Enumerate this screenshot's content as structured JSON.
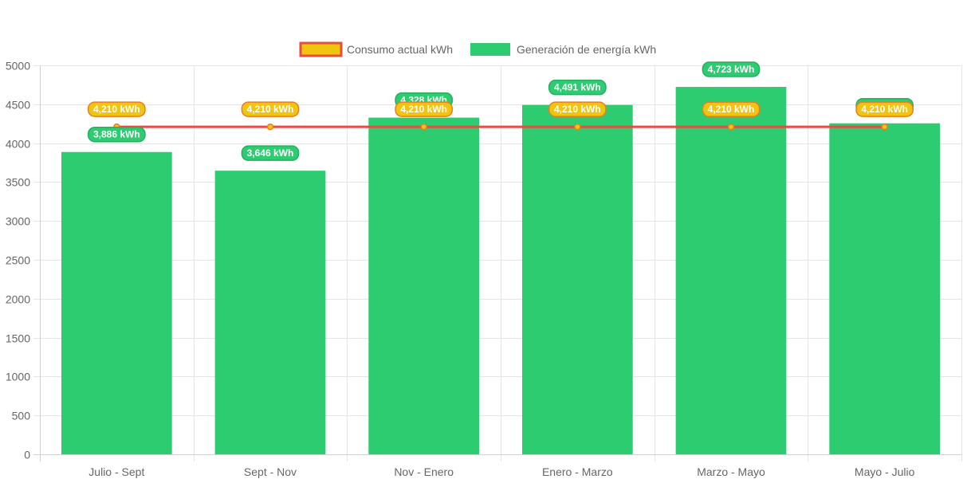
{
  "chart_data": {
    "type": "bar",
    "categories": [
      "Julio - Sept",
      "Sept - Nov",
      "Nov - Enero",
      "Enero - Marzo",
      "Marzo - Mayo",
      "Mayo - Julio"
    ],
    "series": [
      {
        "name": "Consumo actual kWh",
        "type": "line",
        "values": [
          4210,
          4210,
          4210,
          4210,
          4210,
          4210
        ],
        "labels": [
          "4,210 kWh",
          "4,210 kWh",
          "4,210 kWh",
          "4,210 kWh",
          "4,210 kWh",
          "4,210 kWh"
        ],
        "color": "#e74c3c",
        "fill": "#f1c40f"
      },
      {
        "name": "Generación de energía kWh",
        "type": "bar",
        "values": [
          3886,
          3646,
          4328,
          4491,
          4723,
          4255
        ],
        "labels": [
          "3,886 kWh",
          "3,646 kWh",
          "4,328 kWh",
          "4,491 kWh",
          "4,723 kWh",
          "4,255 kWh"
        ],
        "color": "#2ecc71"
      }
    ],
    "ylim": [
      0,
      5000
    ],
    "yticks": [
      "0",
      "500",
      "1000",
      "1500",
      "2000",
      "2500",
      "3000",
      "3500",
      "4000",
      "4500",
      "5000"
    ],
    "legend_position": "top",
    "grid": true
  }
}
